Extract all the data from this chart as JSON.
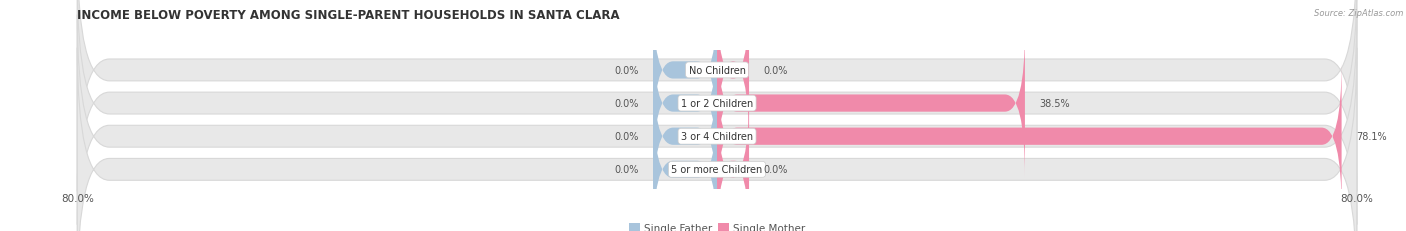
{
  "title": "INCOME BELOW POVERTY AMONG SINGLE-PARENT HOUSEHOLDS IN SANTA CLARA",
  "source": "Source: ZipAtlas.com",
  "categories": [
    "No Children",
    "1 or 2 Children",
    "3 or 4 Children",
    "5 or more Children"
  ],
  "single_father": [
    0.0,
    0.0,
    0.0,
    0.0
  ],
  "single_mother": [
    0.0,
    38.5,
    78.1,
    0.0
  ],
  "father_color": "#a8c4dc",
  "mother_color": "#f08aaa",
  "bar_bg_color": "#e8e8e8",
  "bar_bg_outline": "#d8d8d8",
  "axis_min": -80.0,
  "axis_max": 80.0,
  "title_fontsize": 8.5,
  "label_fontsize": 7.0,
  "tick_fontsize": 7.5,
  "legend_fontsize": 7.5,
  "background_color": "#ffffff",
  "bar_height": 0.52,
  "category_label_fontsize": 7.0,
  "father_min_bar": 8.0,
  "mother_min_bar": 4.0
}
